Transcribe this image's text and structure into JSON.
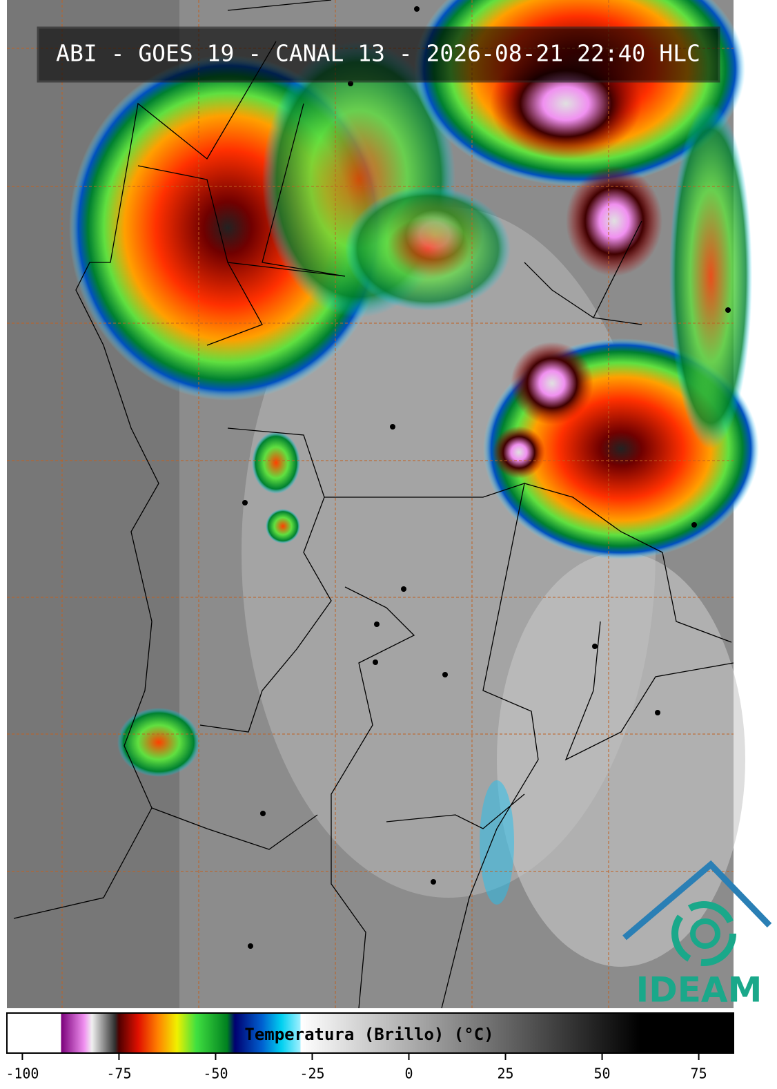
{
  "title": "ABI - GOES 19 - CANAL 13 - 2026-08-21 22:40 HLC",
  "logo": "IDEAM",
  "colorbar": {
    "label": "Temperatura (Brillo) (°C)",
    "lim": [
      -104,
      84
    ],
    "ticks": [
      -100,
      -75,
      -50,
      -25,
      0,
      25,
      50,
      75
    ],
    "colorscale": [
      {
        "value": -104,
        "color": "#ffffff"
      },
      {
        "value": -90,
        "color": "#ffffff"
      },
      {
        "value": -90,
        "color": "#7a007a"
      },
      {
        "value": -84,
        "color": "#f090f0"
      },
      {
        "value": -82,
        "color": "#f0f0f0"
      },
      {
        "value": -76,
        "color": "#303030"
      },
      {
        "value": -75,
        "color": "#500000"
      },
      {
        "value": -70,
        "color": "#e01000"
      },
      {
        "value": -65,
        "color": "#ff8000"
      },
      {
        "value": -60,
        "color": "#f0f000"
      },
      {
        "value": -55,
        "color": "#40e040"
      },
      {
        "value": -47,
        "color": "#008020"
      },
      {
        "value": -45,
        "color": "#000070"
      },
      {
        "value": -38,
        "color": "#0060d0"
      },
      {
        "value": -33,
        "color": "#00d0f0"
      },
      {
        "value": -28,
        "color": "#a0f0ff"
      },
      {
        "value": -28,
        "color": "#ffffff"
      },
      {
        "value": 60,
        "color": "#000000"
      },
      {
        "value": 84,
        "color": "#000000"
      }
    ]
  }
}
